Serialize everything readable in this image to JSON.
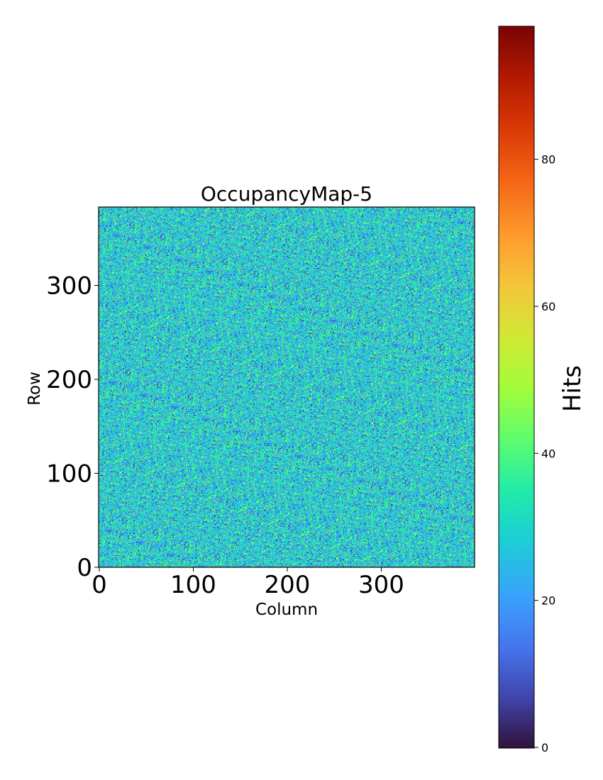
{
  "chart_data": {
    "type": "heatmap",
    "title": "OccupancyMap-5",
    "xlabel": "Column",
    "ylabel": "Row",
    "xlim": [
      0,
      400
    ],
    "ylim": [
      0,
      383
    ],
    "x_ticks": [
      0,
      100,
      200,
      300
    ],
    "y_ticks": [
      0,
      100,
      200,
      300
    ],
    "colormap": "turbo",
    "data_description_value_range": [
      0,
      97
    ],
    "typical_value_range": [
      0,
      50
    ],
    "colorbar": {
      "label": "Hits",
      "range": [
        0,
        97
      ],
      "ticks": [
        0,
        20,
        40,
        60,
        80
      ]
    }
  }
}
